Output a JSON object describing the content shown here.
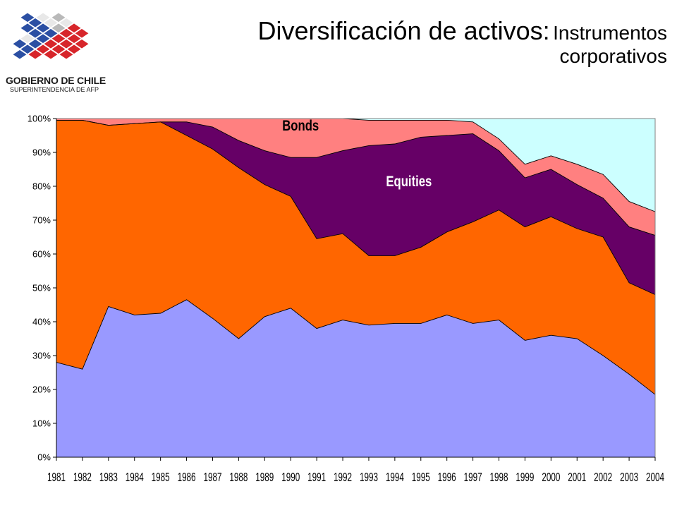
{
  "header": {
    "title_main": "Diversificación de activos:",
    "title_sub_line1": "Instrumentos",
    "title_sub_line2": "corporativos",
    "org_name": "GOBIERNO DE CHILE",
    "org_sub": "SUPERINTENDENCIA DE AFP",
    "logo": "chile-government-logo"
  },
  "chart_data": {
    "type": "area",
    "stacked": true,
    "title": "",
    "xlabel": "",
    "ylabel": "",
    "x": [
      "1981",
      "1982",
      "1983",
      "1984",
      "1985",
      "1986",
      "1987",
      "1988",
      "1989",
      "1990",
      "1991",
      "1992",
      "1993",
      "1994",
      "1995",
      "1996",
      "1997",
      "1998",
      "1999",
      "2000",
      "2001",
      "2002",
      "2003",
      "2004"
    ],
    "ylim": [
      0,
      100
    ],
    "yticks": [
      0,
      10,
      20,
      30,
      40,
      50,
      60,
      70,
      80,
      90,
      100
    ],
    "ytick_labels": [
      "0%",
      "10%",
      "20%",
      "30%",
      "40%",
      "50%",
      "60%",
      "70%",
      "80%",
      "90%",
      "100%"
    ],
    "grid": false,
    "series": [
      {
        "name": "",
        "color": "#9999ff",
        "values": [
          28,
          26,
          44.5,
          42,
          42.5,
          46.5,
          41,
          35,
          41.5,
          44,
          38,
          40.5,
          39,
          39.5,
          39.5,
          42,
          39.5,
          40.5,
          34.5,
          36,
          35,
          30,
          24.5,
          18.5
        ]
      },
      {
        "name": "",
        "color": "#ff6600",
        "values": [
          71.5,
          73.5,
          53.5,
          56.5,
          56.5,
          48.5,
          50,
          50.5,
          39,
          33,
          26.5,
          25.5,
          20.5,
          20,
          22.5,
          24.5,
          30,
          32.5,
          33.5,
          35,
          32.5,
          35,
          27,
          29.5
        ]
      },
      {
        "name": "Equities",
        "color": "#660066",
        "values": [
          0,
          0,
          0,
          0,
          0,
          4,
          6.5,
          8,
          10,
          11.5,
          24,
          24.5,
          32.5,
          33,
          32.5,
          28.5,
          26,
          17.5,
          14.5,
          14,
          13,
          11.5,
          16.5,
          17.5
        ]
      },
      {
        "name": "Bonds",
        "color": "#ff8080",
        "values": [
          0.5,
          0.5,
          2,
          1.5,
          1,
          1,
          2.5,
          6.5,
          9.5,
          11.5,
          11.5,
          9.5,
          7.5,
          7,
          5,
          4.5,
          3.5,
          3.5,
          4,
          4,
          6,
          7,
          7.5,
          7
        ]
      },
      {
        "name": "",
        "color": "#ccffff",
        "values": [
          0,
          0,
          0,
          0,
          0,
          0,
          0,
          0,
          0,
          0,
          0,
          0,
          0.5,
          0.5,
          0.5,
          0.5,
          1,
          6,
          13.5,
          11,
          13.5,
          16.5,
          24.5,
          27.5
        ]
      }
    ],
    "annotations": [
      {
        "text": "Bonds",
        "x": "1990",
        "y": 96.5
      },
      {
        "text": "Equities",
        "x": "1994",
        "y": 80
      }
    ]
  }
}
